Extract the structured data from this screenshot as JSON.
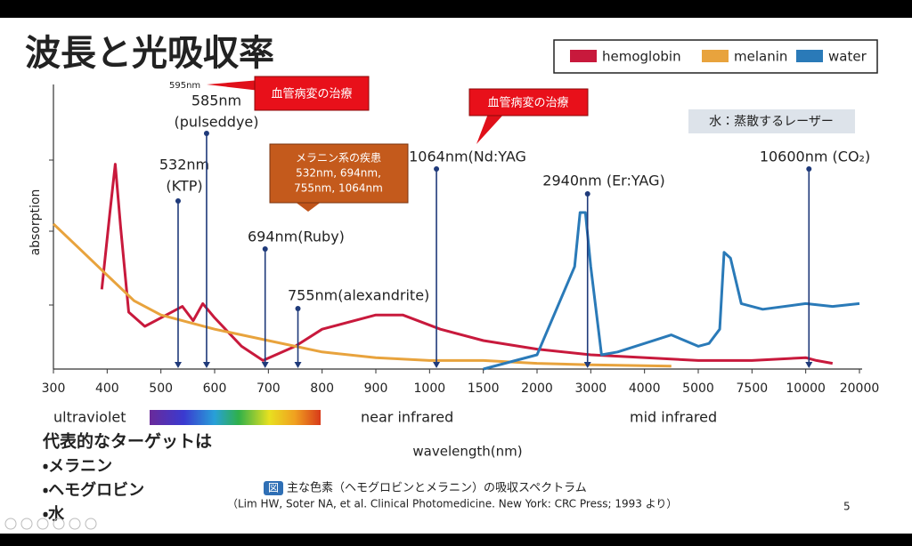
{
  "title": "波長と光吸収率",
  "chart_data": {
    "type": "line",
    "y_label": "absorption",
    "x_label": "wavelength(nm)",
    "xticks": [
      300,
      400,
      500,
      600,
      700,
      800,
      900,
      1000,
      1500,
      2000,
      3000,
      4000,
      5000,
      7500,
      10000,
      20000
    ],
    "ylim": [
      0,
      100
    ],
    "series": [
      {
        "name": "hemoglobin",
        "color": "#c8193c",
        "x": [
          390,
          405,
          415,
          425,
          440,
          470,
          500,
          540,
          560,
          578,
          600,
          650,
          690,
          750,
          800,
          900,
          950,
          1100,
          1500,
          2000,
          3000,
          5000,
          7500,
          10000,
          12000,
          15000
        ],
        "values": [
          28,
          55,
          72,
          50,
          20,
          15,
          18,
          22,
          17,
          23,
          18,
          8,
          3,
          8,
          14,
          19,
          19,
          14,
          10,
          7,
          5,
          3,
          3,
          4,
          3,
          2
        ]
      },
      {
        "name": "melanin",
        "color": "#e8a33d",
        "x": [
          300,
          350,
          400,
          450,
          500,
          600,
          700,
          800,
          900,
          1000,
          1500,
          2000,
          3000,
          4500
        ],
        "values": [
          51,
          42,
          33,
          24,
          19,
          14,
          10,
          6,
          4,
          3,
          3,
          2,
          1.5,
          1
        ]
      },
      {
        "name": "water",
        "color": "#2a7ab8",
        "x": [
          1500,
          2000,
          2700,
          2800,
          2900,
          3000,
          3200,
          3500,
          4500,
          5000,
          5500,
          6000,
          6200,
          6500,
          7000,
          8000,
          10000,
          15000,
          20000
        ],
        "values": [
          0,
          5,
          36,
          55,
          55,
          36,
          5,
          6,
          12,
          8,
          9,
          14,
          41,
          39,
          23,
          21,
          23,
          22,
          23
        ]
      }
    ],
    "lasers": [
      {
        "label": [
          "532nm",
          "(KTP)"
        ],
        "x": 532
      },
      {
        "label": [
          "585nm",
          "(pulseddye)"
        ],
        "x": 585
      },
      {
        "label": [
          "694nm(Ruby)"
        ],
        "x": 694
      },
      {
        "label": [
          "755nm(alexandrite)"
        ],
        "x": 755
      },
      {
        "label": [
          "1064nm(Nd:YAG"
        ],
        "x": 1064
      },
      {
        "label": [
          "2940nm (Er:YAG)"
        ],
        "x": 2940
      },
      {
        "label": [
          "10600nm (CO₂)"
        ],
        "x": 10600
      }
    ],
    "regions": [
      "ultraviolet",
      "near infrared",
      "mid  infrared"
    ],
    "annotations": {
      "marker_595": "595nm",
      "vascular_1": "血管病変の治療",
      "vascular_2": "血管病変の治療",
      "melanin": [
        "メラニン系の疾患",
        "532nm, 694nm,",
        "755nm, 1064nm"
      ],
      "water": "水：蒸散するレーザー"
    }
  },
  "targets": {
    "heading": "代表的なターゲットは",
    "items": [
      "・メラニン",
      "・ヘモグロビン",
      "・水"
    ]
  },
  "caption": {
    "badge": "図",
    "text": "主な色素（ヘモグロビンとメラニン）の吸収スペクトラム",
    "source": "（Lim HW, Soter NA, et al. Clinical Photomedicine. New York: CRC Press; 1993 より）"
  },
  "page_number": 5
}
